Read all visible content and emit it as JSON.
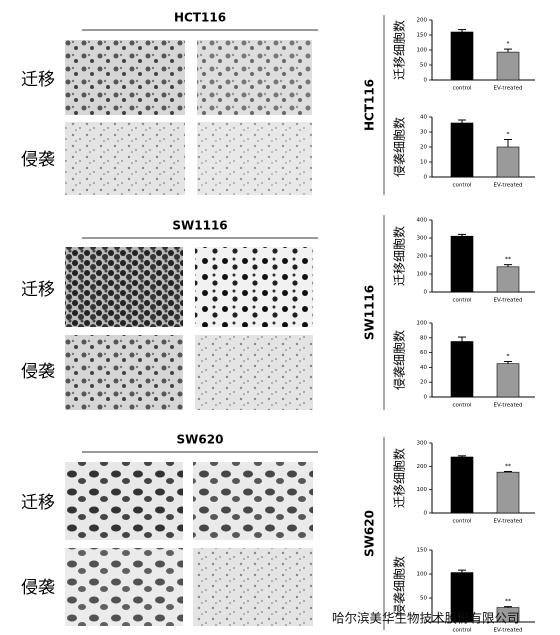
{
  "panels": [
    {
      "cell_line": "HCT116",
      "row_labels": [
        "迁移",
        "侵袭"
      ]
    },
    {
      "cell_line": "SW1116",
      "row_labels": [
        "迁移",
        "侵袭"
      ]
    },
    {
      "cell_line": "SW620",
      "row_labels": [
        "迁移",
        "侵袭"
      ]
    }
  ],
  "chart_data": [
    {
      "type": "bar",
      "y_label": "迁移细胞数",
      "categories": [
        "control",
        "EV-treated"
      ],
      "values": [
        160,
        93
      ],
      "errors": [
        8,
        10
      ],
      "colors": [
        "#000000",
        "#9a9a9a"
      ],
      "ylim": [
        0,
        200
      ],
      "yticks": [
        0,
        50,
        100,
        150,
        200
      ],
      "annotation": "*"
    },
    {
      "type": "bar",
      "y_label": "侵袭细胞数",
      "categories": [
        "control",
        "EV-treated"
      ],
      "values": [
        36,
        20
      ],
      "errors": [
        2,
        5
      ],
      "colors": [
        "#000000",
        "#9a9a9a"
      ],
      "ylim": [
        0,
        40
      ],
      "yticks": [
        0,
        10,
        20,
        30,
        40
      ],
      "annotation": "*"
    },
    {
      "type": "bar",
      "y_label": "迁移细胞数",
      "categories": [
        "control",
        "EV-treated"
      ],
      "values": [
        310,
        140
      ],
      "errors": [
        10,
        12
      ],
      "colors": [
        "#000000",
        "#9a9a9a"
      ],
      "ylim": [
        0,
        400
      ],
      "yticks": [
        0,
        100,
        200,
        300,
        400
      ],
      "annotation": "**"
    },
    {
      "type": "bar",
      "y_label": "侵袭细胞数",
      "categories": [
        "control",
        "EV-treated"
      ],
      "values": [
        75,
        45
      ],
      "errors": [
        6,
        3
      ],
      "colors": [
        "#000000",
        "#9a9a9a"
      ],
      "ylim": [
        0,
        100
      ],
      "yticks": [
        0,
        20,
        40,
        60,
        80,
        100
      ],
      "annotation": "*"
    },
    {
      "type": "bar",
      "y_label": "迁移细胞数",
      "categories": [
        "control",
        "EV-treated"
      ],
      "values": [
        240,
        175
      ],
      "errors": [
        5,
        3
      ],
      "colors": [
        "#000000",
        "#9a9a9a"
      ],
      "ylim": [
        0,
        300
      ],
      "yticks": [
        0,
        100,
        200,
        300
      ],
      "annotation": "**"
    },
    {
      "type": "bar",
      "y_label": "侵袭细胞数",
      "categories": [
        "control",
        "EV-treated"
      ],
      "values": [
        103,
        30
      ],
      "errors": [
        5,
        2
      ],
      "colors": [
        "#000000",
        "#9a9a9a"
      ],
      "ylim": [
        0,
        150
      ],
      "yticks": [
        0,
        50,
        100,
        150
      ],
      "annotation": "**"
    }
  ],
  "watermark": "哈尔滨美华生物技术股份有限公司"
}
